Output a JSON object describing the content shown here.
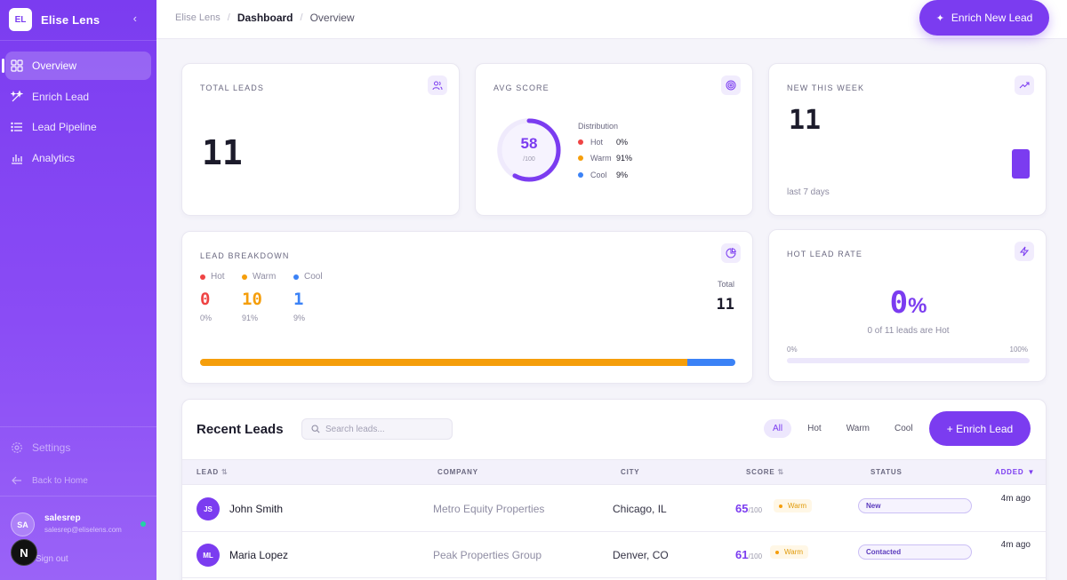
{
  "brand": {
    "logo": "EL",
    "name": "Elise Lens",
    "collapse_icon": "chevron-left-icon"
  },
  "nav": [
    {
      "label": "Overview",
      "icon": "grid-icon",
      "active": true
    },
    {
      "label": "Enrich Lead",
      "icon": "sparkles-icon",
      "active": false
    },
    {
      "label": "Lead Pipeline",
      "icon": "list-icon",
      "active": false
    },
    {
      "label": "Analytics",
      "icon": "bar-chart-icon",
      "active": false
    }
  ],
  "sidebar_bottom": {
    "settings": "Settings",
    "back": "Back to Home",
    "user": {
      "initials": "SA",
      "name": "salesrep",
      "email": "salesrep@eliselens.com"
    },
    "signout": "Sign out",
    "badge": "N"
  },
  "header": {
    "breadcrumb": [
      "Elise Lens",
      "Dashboard",
      "Overview"
    ],
    "cta": "Enrich New Lead"
  },
  "cards": {
    "total_leads": {
      "title": "TOTAL LEADS",
      "value": "11",
      "icon": "users-icon"
    },
    "avg_score": {
      "title": "AVG SCORE",
      "icon": "target-icon",
      "value": "58",
      "max": "/100",
      "fraction": 0.58,
      "distribution_title": "Distribution",
      "distribution": [
        {
          "label": "Hot",
          "pct": "0%",
          "color": "#ef4444"
        },
        {
          "label": "Warm",
          "pct": "91%",
          "color": "#f59e0b"
        },
        {
          "label": "Cool",
          "pct": "9%",
          "color": "#3b82f6"
        }
      ]
    },
    "new_this_week": {
      "title": "NEW THIS WEEK",
      "value": "11",
      "sub": "last 7 days",
      "icon": "trending-up-icon"
    },
    "lead_breakdown": {
      "title": "LEAD BREAKDOWN",
      "icon": "pie-chart-icon",
      "items": [
        {
          "label": "Hot",
          "count": "0",
          "pct": "0%",
          "share": 0,
          "color": "#ef4444"
        },
        {
          "label": "Warm",
          "count": "10",
          "pct": "91%",
          "share": 0.91,
          "color": "#f59e0b"
        },
        {
          "label": "Cool",
          "count": "1",
          "pct": "9%",
          "share": 0.09,
          "color": "#3b82f6"
        }
      ],
      "total_label": "Total",
      "total_value": "11"
    },
    "hot_lead_rate": {
      "title": "HOT LEAD RATE",
      "icon": "zap-icon",
      "value": "0",
      "unit": "%",
      "sub": "0 of 11 leads are Hot",
      "min": "0%",
      "max": "100%",
      "fraction": 0
    }
  },
  "recent_leads": {
    "title": "Recent Leads",
    "search_placeholder": "Search leads...",
    "filters": [
      "All",
      "Hot",
      "Warm",
      "Cool"
    ],
    "active_filter": "All",
    "cta": "+ Enrich Lead",
    "columns": {
      "lead": "LEAD",
      "company": "COMPANY",
      "city": "CITY",
      "score": "SCORE",
      "status": "STATUS",
      "added": "ADDED"
    },
    "rows": [
      {
        "initials": "JS",
        "name": "John Smith",
        "company": "Metro Equity Properties",
        "city": "Chicago, IL",
        "score": "65",
        "score_max": "/100",
        "temp": "Warm",
        "status": "New",
        "added": "4m ago"
      },
      {
        "initials": "ML",
        "name": "Maria Lopez",
        "company": "Peak Properties Group",
        "city": "Denver, CO",
        "score": "61",
        "score_max": "/100",
        "temp": "Warm",
        "status": "Contacted",
        "added": "4m ago"
      }
    ]
  }
}
